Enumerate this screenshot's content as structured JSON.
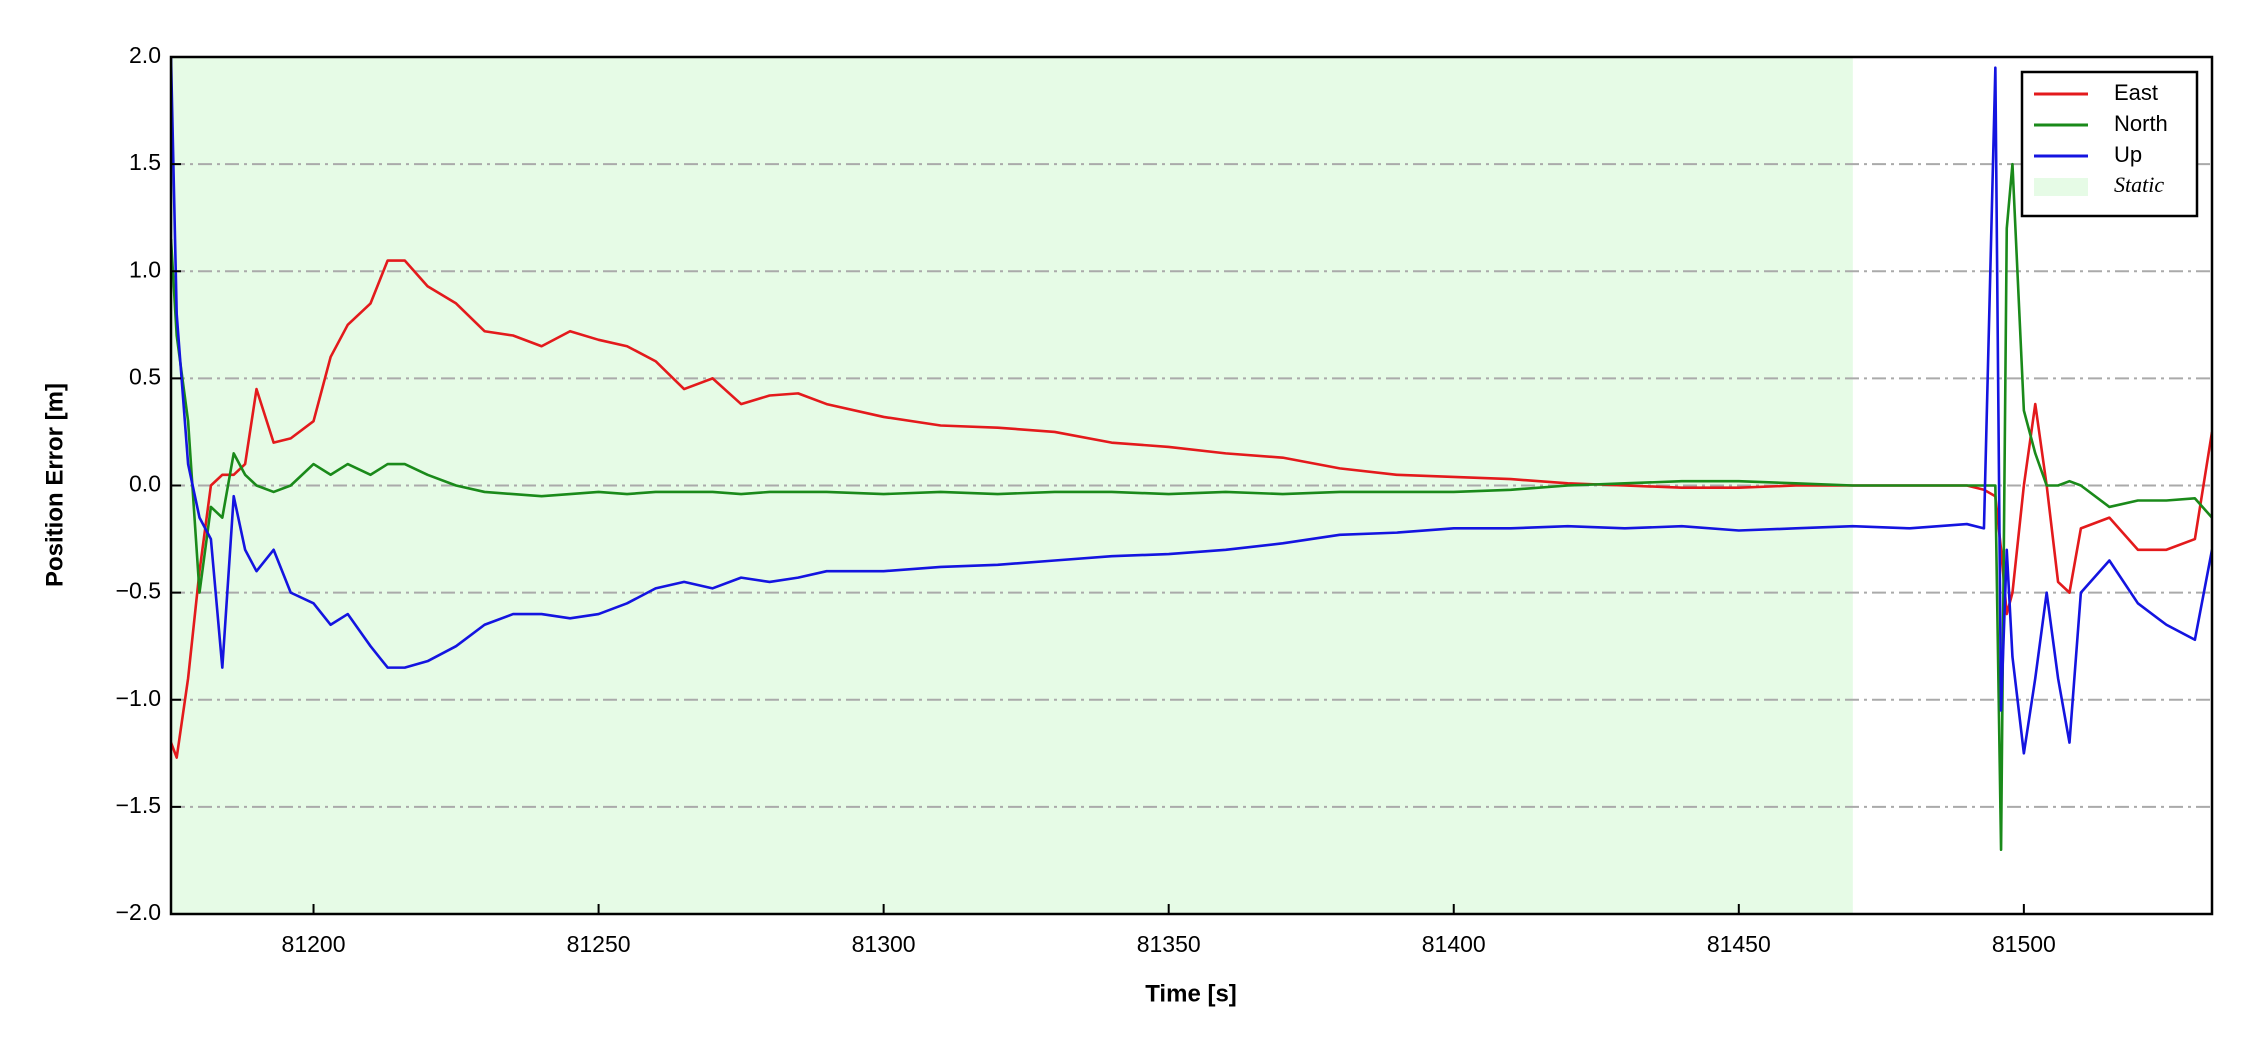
{
  "chart_data": {
    "type": "line",
    "xlabel": "Time [s]",
    "ylabel": "Position Error [m]",
    "x": [
      81175,
      81176,
      81178,
      81180,
      81182,
      81184,
      81186,
      81188,
      81190,
      81193,
      81196,
      81200,
      81203,
      81206,
      81210,
      81213,
      81216,
      81220,
      81225,
      81230,
      81235,
      81240,
      81245,
      81250,
      81255,
      81260,
      81265,
      81270,
      81275,
      81280,
      81285,
      81290,
      81300,
      81310,
      81320,
      81330,
      81340,
      81350,
      81360,
      81370,
      81380,
      81390,
      81400,
      81410,
      81420,
      81430,
      81440,
      81450,
      81460,
      81470,
      81480,
      81490,
      81493,
      81495,
      81496,
      81497,
      81498,
      81500,
      81502,
      81504,
      81506,
      81508,
      81510,
      81515,
      81520,
      81525,
      81530,
      81533
    ],
    "series": [
      {
        "name": "East",
        "color": "#e31a1c",
        "values": [
          -1.2,
          -1.27,
          -0.9,
          -0.4,
          0.0,
          0.05,
          0.05,
          0.1,
          0.45,
          0.2,
          0.22,
          0.3,
          0.6,
          0.75,
          0.85,
          1.05,
          1.05,
          0.93,
          0.85,
          0.72,
          0.7,
          0.65,
          0.72,
          0.68,
          0.65,
          0.58,
          0.45,
          0.5,
          0.38,
          0.42,
          0.43,
          0.38,
          0.32,
          0.28,
          0.27,
          0.25,
          0.2,
          0.18,
          0.15,
          0.13,
          0.08,
          0.05,
          0.04,
          0.03,
          0.01,
          0.0,
          -0.01,
          -0.01,
          0.0,
          0.0,
          0.0,
          0.0,
          -0.02,
          -0.05,
          -0.3,
          -0.6,
          -0.5,
          0.0,
          0.38,
          0.0,
          -0.45,
          -0.5,
          -0.2,
          -0.15,
          -0.3,
          -0.3,
          -0.25,
          0.25
        ]
      },
      {
        "name": "North",
        "color": "#1a8a1a",
        "values": [
          1.15,
          0.7,
          0.3,
          -0.5,
          -0.1,
          -0.15,
          0.15,
          0.05,
          0.0,
          -0.03,
          0.0,
          0.1,
          0.05,
          0.1,
          0.05,
          0.1,
          0.1,
          0.05,
          0.0,
          -0.03,
          -0.04,
          -0.05,
          -0.04,
          -0.03,
          -0.04,
          -0.03,
          -0.03,
          -0.03,
          -0.04,
          -0.03,
          -0.03,
          -0.03,
          -0.04,
          -0.03,
          -0.04,
          -0.03,
          -0.03,
          -0.04,
          -0.03,
          -0.04,
          -0.03,
          -0.03,
          -0.03,
          -0.02,
          0.0,
          0.01,
          0.02,
          0.02,
          0.01,
          0.0,
          0.0,
          0.0,
          0.0,
          0.0,
          -1.7,
          1.2,
          1.5,
          0.35,
          0.15,
          0.0,
          0.0,
          0.02,
          0.0,
          -0.1,
          -0.07,
          -0.07,
          -0.06,
          -0.15
        ]
      },
      {
        "name": "Up",
        "color": "#1414e0",
        "values": [
          2.0,
          0.8,
          0.1,
          -0.15,
          -0.25,
          -0.85,
          -0.05,
          -0.3,
          -0.4,
          -0.3,
          -0.5,
          -0.55,
          -0.65,
          -0.6,
          -0.75,
          -0.85,
          -0.85,
          -0.82,
          -0.75,
          -0.65,
          -0.6,
          -0.6,
          -0.62,
          -0.6,
          -0.55,
          -0.48,
          -0.45,
          -0.48,
          -0.43,
          -0.45,
          -0.43,
          -0.4,
          -0.4,
          -0.38,
          -0.37,
          -0.35,
          -0.33,
          -0.32,
          -0.3,
          -0.27,
          -0.23,
          -0.22,
          -0.2,
          -0.2,
          -0.19,
          -0.2,
          -0.19,
          -0.21,
          -0.2,
          -0.19,
          -0.2,
          -0.18,
          -0.2,
          1.95,
          -1.05,
          -0.3,
          -0.8,
          -1.25,
          -0.9,
          -0.5,
          -0.9,
          -1.2,
          -0.5,
          -0.35,
          -0.55,
          -0.65,
          -0.72,
          -0.3
        ]
      }
    ],
    "shaded": {
      "name": "Static",
      "from": 81175,
      "to": 81470,
      "color": "#e6fbe6"
    },
    "xlim": [
      81175,
      81533
    ],
    "ylim": [
      -2,
      2
    ],
    "xticks": [
      81200,
      81250,
      81300,
      81350,
      81400,
      81450,
      81500
    ],
    "yticks": [
      {
        "value": -2,
        "label": "−2.0"
      },
      {
        "value": -1.5,
        "label": "−1.5"
      },
      {
        "value": -1,
        "label": "−1.0"
      },
      {
        "value": -0.5,
        "label": "−0.5"
      },
      {
        "value": 0,
        "label": "0.0"
      },
      {
        "value": 0.5,
        "label": "0.5"
      },
      {
        "value": 1,
        "label": "1.0"
      },
      {
        "value": 1.5,
        "label": "1.5"
      },
      {
        "value": 2,
        "label": "2.0"
      }
    ],
    "grid": "y",
    "legend": "upper right"
  }
}
